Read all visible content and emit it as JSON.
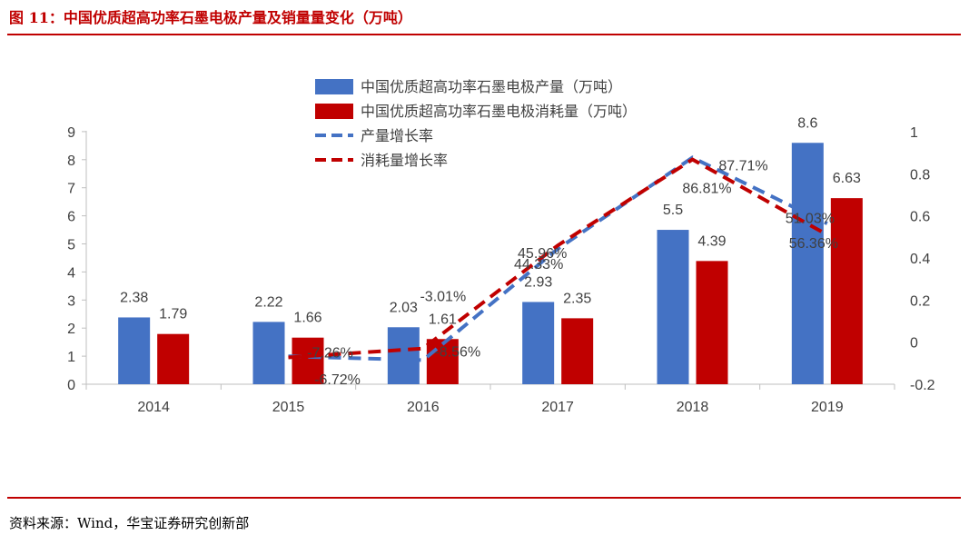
{
  "header": {
    "title": "图 11：中国优质超高功率石墨电极产量及销量量变化（万吨）"
  },
  "footer": {
    "source": "资料来源：Wind，华宝证券研究创新部"
  },
  "colors": {
    "accent": "#c00000",
    "production": "#4472c4",
    "consumption": "#c00000"
  },
  "chart_data": {
    "type": "bar",
    "categories": [
      "2014",
      "2015",
      "2016",
      "2017",
      "2018",
      "2019"
    ],
    "series": [
      {
        "name": "中国优质超高功率石墨电极产量（万吨）",
        "type": "bar",
        "axis": "left",
        "color": "#4472c4",
        "values": [
          2.38,
          2.22,
          2.03,
          2.93,
          5.5,
          8.6
        ],
        "labels": [
          "2.38",
          "2.22",
          "2.03",
          "2.93",
          "5.5",
          "8.6"
        ]
      },
      {
        "name": "中国优质超高功率石墨电极消耗量（万吨）",
        "type": "bar",
        "axis": "left",
        "color": "#c00000",
        "values": [
          1.79,
          1.66,
          1.61,
          2.35,
          4.39,
          6.63
        ],
        "labels": [
          "1.79",
          "1.66",
          "1.61",
          "2.35",
          "4.39",
          "6.63"
        ]
      },
      {
        "name": "产量增长率",
        "type": "line",
        "style": "dashed",
        "axis": "right",
        "color": "#4472c4",
        "values": [
          null,
          -0.0672,
          -0.0856,
          0.4433,
          0.8771,
          0.5636
        ],
        "labels": [
          "",
          "-6.72%",
          "-8.56%",
          "44.33%",
          "87.71%",
          "56.36%"
        ]
      },
      {
        "name": "消耗量增长率",
        "type": "line",
        "style": "dashed",
        "axis": "right",
        "color": "#c00000",
        "values": [
          null,
          -0.0726,
          -0.0301,
          0.4596,
          0.8681,
          0.5103
        ],
        "labels": [
          "",
          "-7.26%",
          "-3.01%",
          "45.96%",
          "86.81%",
          "51.03%"
        ]
      }
    ],
    "yleft": {
      "min": 0,
      "max": 9,
      "ticks": [
        "0",
        "1",
        "2",
        "3",
        "4",
        "5",
        "6",
        "7",
        "8",
        "9"
      ]
    },
    "yright": {
      "min": -0.2,
      "max": 1,
      "ticks": [
        "-0.2",
        "0",
        "0.2",
        "0.4",
        "0.6",
        "0.8",
        "1"
      ]
    },
    "legend": "top-center",
    "grid": false
  }
}
